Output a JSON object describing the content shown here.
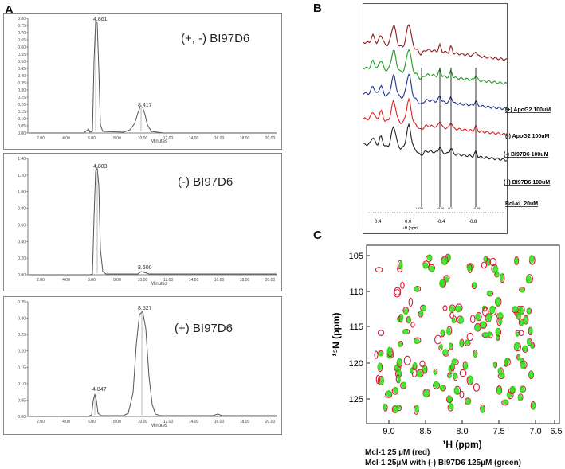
{
  "figure": {
    "panel_labels": [
      "A",
      "B",
      "C"
    ],
    "panel_a": {
      "x_tick_labels": [
        "2.00",
        "4.00",
        "6.00",
        "8.00",
        "10.00",
        "12.00",
        "14.00",
        "16.00",
        "18.00",
        "20.00"
      ],
      "x_unit": "Minutes",
      "chromatograms": [
        {
          "label": "(+, -) BI97D6",
          "y_ticks": [
            "0.80",
            "0.75",
            "0.70",
            "0.65",
            "0.60",
            "0.55",
            "0.50",
            "0.45",
            "0.40",
            "0.35",
            "0.30",
            "0.25",
            "0.20",
            "0.15",
            "0.10",
            "0.05",
            "0.00"
          ],
          "peak_labels": [
            "4.861",
            "8.417"
          ]
        },
        {
          "label": "(-) BI97D6",
          "y_ticks": [
            "1.40",
            "1.20",
            "1.00",
            "0.80",
            "0.60",
            "0.40",
            "0.20",
            "0.00"
          ],
          "peak_labels": [
            "4.883",
            "8.600"
          ]
        },
        {
          "label": "(+) BI97D6",
          "y_ticks": [
            "0.35",
            "0.30",
            "0.25",
            "0.20",
            "0.15",
            "0.10",
            "0.05",
            "0.00"
          ],
          "peak_labels": [
            "4.847",
            "8.527"
          ]
        }
      ]
    },
    "panel_b": {
      "spectra": [
        {
          "label": "(+) ApoG2 100uM",
          "color": "#8b1a1a"
        },
        {
          "label": "(-) ApoG2 100uM",
          "color": "#1f9a1f"
        },
        {
          "label": "(-) BI97D6 100uM",
          "color": "#22338a"
        },
        {
          "label": "(+) BI97D6 100uM",
          "color": "#e02020"
        },
        {
          "label": "Bcl-xL 20uM",
          "color": "#222222"
        }
      ],
      "residue_labels": [
        "L130",
        "V126",
        "I??",
        "V135"
      ],
      "x_ticks": [
        "0.4",
        "0.0",
        "-0.4",
        "-0.8"
      ],
      "x_label": "¹H [ppm]"
    },
    "panel_c": {
      "y_label": "¹⁵N (ppm)",
      "x_label": "¹H (ppm)",
      "y_ticks": [
        "105",
        "110",
        "115",
        "120",
        "125"
      ],
      "x_ticks": [
        "9.0",
        "8.5",
        "8.0",
        "7.5",
        "7.0",
        "6.5"
      ],
      "caption_line1": "Mcl-1 25 µM (red)",
      "caption_line2": "Mcl-1 25µM with (-) BI97D6 125µM (green)",
      "colors": {
        "red": "#d81a3a",
        "green": "#2ee01a"
      }
    }
  }
}
